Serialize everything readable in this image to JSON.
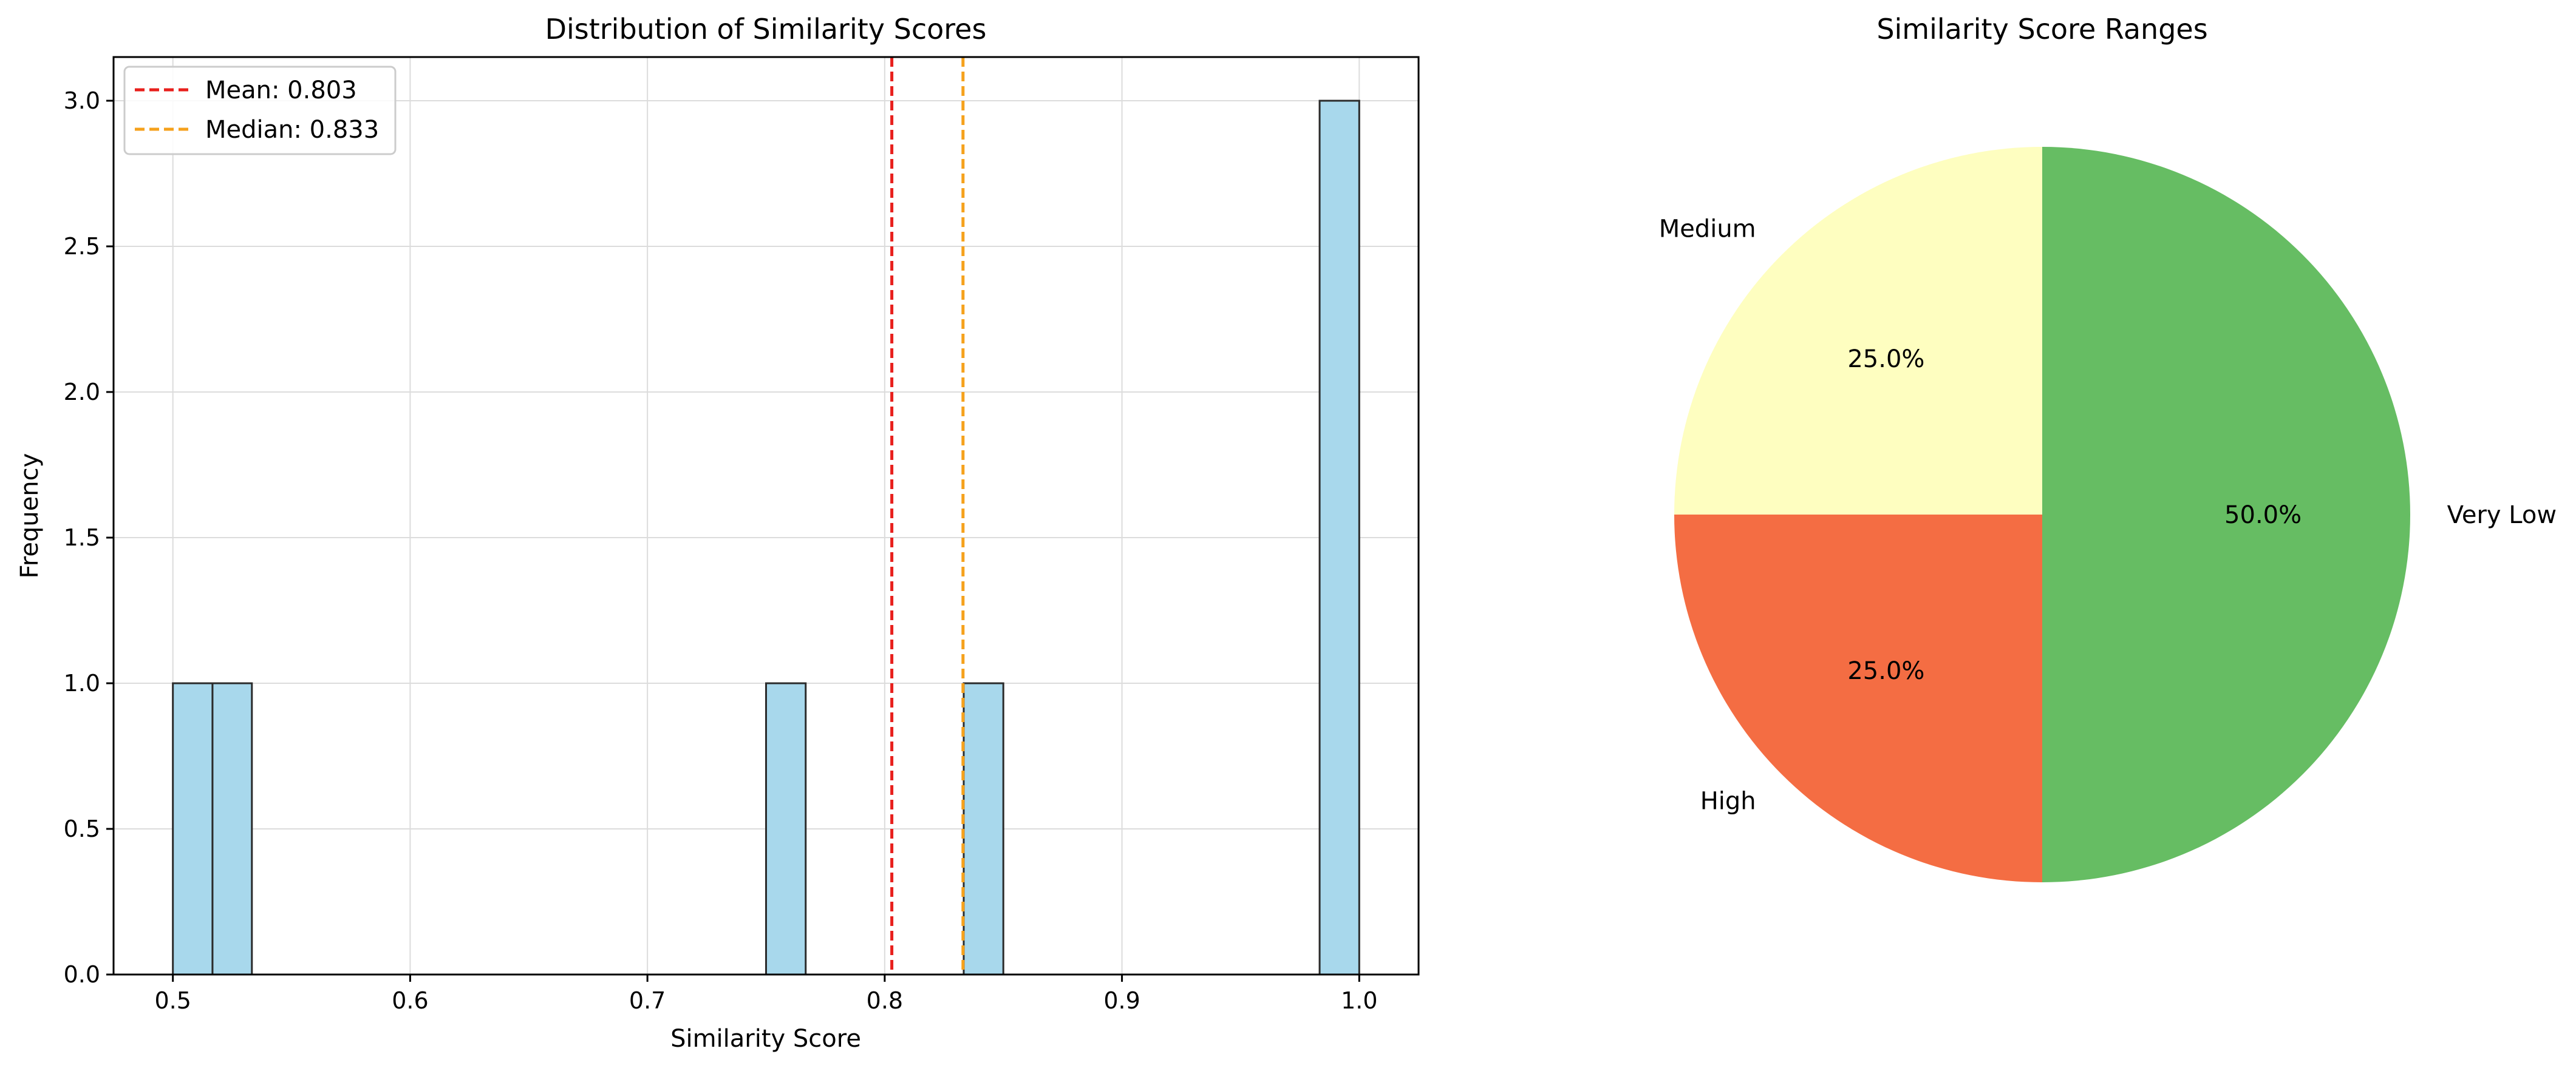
{
  "chart_data": [
    {
      "type": "bar",
      "title": "Distribution of Similarity Scores",
      "xlabel": "Similarity Score",
      "ylabel": "Frequency",
      "xlim": [
        0.475,
        1.025
      ],
      "ylim": [
        0,
        3.15
      ],
      "xticks": [
        "0.5",
        "0.6",
        "0.7",
        "0.8",
        "0.9",
        "1.0"
      ],
      "yticks": [
        "0.0",
        "0.5",
        "1.0",
        "1.5",
        "2.0",
        "2.5",
        "3.0"
      ],
      "grid": true,
      "legend_position": "upper left",
      "bar_color": "#a8d8ec",
      "bin_edges": [
        0.5,
        0.5167,
        0.5333,
        0.55,
        0.5667,
        0.5833,
        0.6,
        0.6167,
        0.6333,
        0.65,
        0.6667,
        0.6833,
        0.7,
        0.7167,
        0.7333,
        0.75,
        0.7667,
        0.7833,
        0.8,
        0.8167,
        0.8333,
        0.85,
        0.8667,
        0.8833,
        0.9,
        0.9167,
        0.9333,
        0.95,
        0.9667,
        0.9833,
        1.0
      ],
      "counts": [
        1,
        1,
        0,
        0,
        0,
        0,
        0,
        0,
        0,
        0,
        0,
        0,
        0,
        0,
        0,
        1,
        0,
        0,
        0,
        0,
        1,
        0,
        0,
        0,
        0,
        0,
        0,
        0,
        0,
        3
      ],
      "reference_lines": [
        {
          "label": "Mean: 0.803",
          "value": 0.803,
          "color": "#e8201d",
          "style": "dashed"
        },
        {
          "label": "Median: 0.833",
          "value": 0.833,
          "color": "#f5a11c",
          "style": "dashed"
        }
      ]
    },
    {
      "type": "pie",
      "title": "Similarity Score Ranges",
      "slices": [
        {
          "label": "Very Low",
          "value": 50.0,
          "pct_label": "50.0%",
          "color": "#66bd63"
        },
        {
          "label": "High",
          "value": 25.0,
          "pct_label": "25.0%",
          "color": "#f46d43"
        },
        {
          "label": "Medium",
          "value": 25.0,
          "pct_label": "25.0%",
          "color": "#fefec0"
        }
      ]
    }
  ]
}
